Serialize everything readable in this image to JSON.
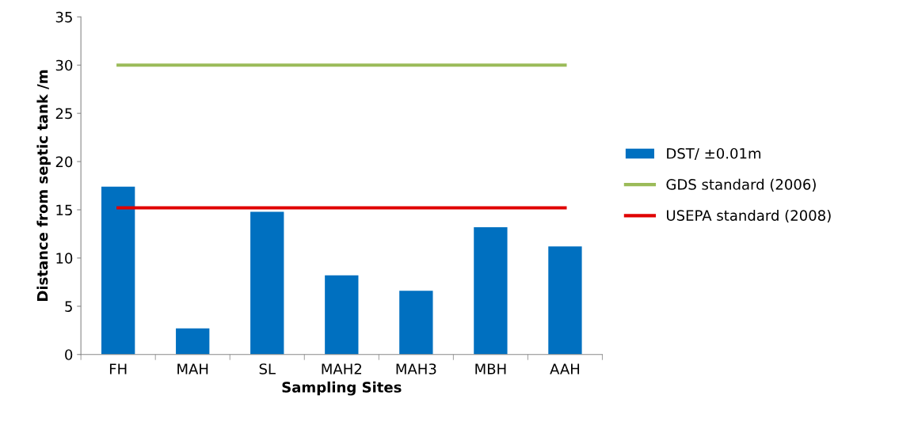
{
  "chart_data": {
    "type": "bar",
    "xlabel": "Sampling Sites",
    "ylabel": "Distance from septic tank /m",
    "categories": [
      "FH",
      "MAH",
      "SL",
      "MAH2",
      "MAH3",
      "MBH",
      "AAH"
    ],
    "series": [
      {
        "name": "DST/ ±0.01m",
        "color": "#0070c0",
        "values": [
          17.4,
          2.7,
          14.8,
          8.2,
          6.6,
          13.2,
          11.2
        ]
      },
      {
        "name": "GDS standard (2006)",
        "type": "line",
        "color": "#9bbb59",
        "values": [
          30,
          30,
          30,
          30,
          30,
          30,
          30
        ]
      },
      {
        "name": "USEPA standard (2008)",
        "type": "line",
        "color": "#e00000",
        "values": [
          15.2,
          15.2,
          15.2,
          15.2,
          15.2,
          15.2,
          15.2
        ]
      }
    ],
    "ylim": [
      0,
      35
    ],
    "yticks": [
      0,
      5,
      10,
      15,
      20,
      25,
      30,
      35
    ],
    "grid": false,
    "legend": "right"
  }
}
